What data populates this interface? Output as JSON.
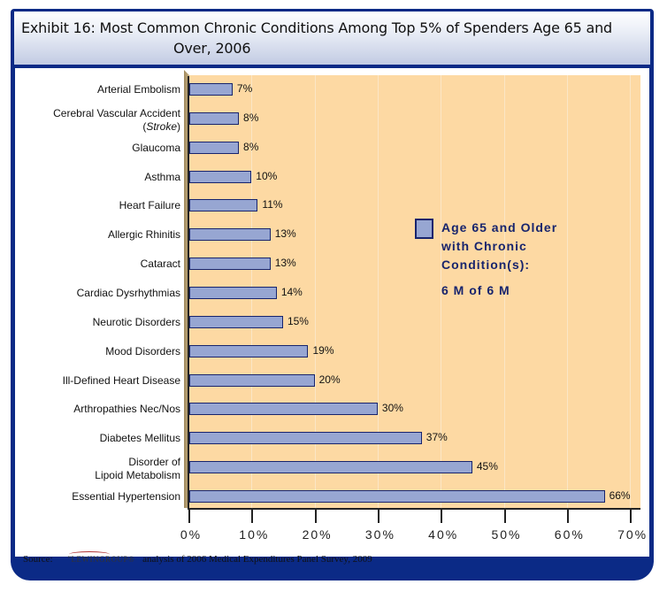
{
  "header": {
    "title_line1": "Exhibit 16: Most Common Chronic Conditions Among Top 5% of Spenders Age 65 and",
    "title_line2": "Over, 2006"
  },
  "legend": {
    "line1": "Age 65 and Older",
    "line2": "with Chronic",
    "line3": "Condition(s):",
    "line4": "6 M of 6 M",
    "swatch_color": "#97a6d2"
  },
  "source": {
    "label": "Source:",
    "logo": "\"LEWINGROUP®",
    "text": "analysis of 2006 Medical Expenditures Panel Survey, 2009"
  },
  "axis": {
    "ticks": [
      "0%",
      "10%",
      "20%",
      "30%",
      "40%",
      "50%",
      "60%",
      "70%"
    ]
  },
  "categories": [
    {
      "line1": "Arterial Embolism",
      "line2": "",
      "value": 7,
      "label": "7%"
    },
    {
      "line1": "Cerebral Vascular Accident",
      "line2": "(Stroke)",
      "value": 8,
      "label": "8%"
    },
    {
      "line1": "Glaucoma",
      "line2": "",
      "value": 8,
      "label": "8%"
    },
    {
      "line1": "Asthma",
      "line2": "",
      "value": 10,
      "label": "10%"
    },
    {
      "line1": "Heart Failure",
      "line2": "",
      "value": 11,
      "label": "11%"
    },
    {
      "line1": "Allergic Rhinitis",
      "line2": "",
      "value": 13,
      "label": "13%"
    },
    {
      "line1": "Cataract",
      "line2": "",
      "value": 13,
      "label": "13%"
    },
    {
      "line1": "Cardiac Dysrhythmias",
      "line2": "",
      "value": 14,
      "label": "14%"
    },
    {
      "line1": "Neurotic Disorders",
      "line2": "",
      "value": 15,
      "label": "15%"
    },
    {
      "line1": "Mood Disorders",
      "line2": "",
      "value": 19,
      "label": "19%"
    },
    {
      "line1": "Ill-Defined Heart Disease",
      "line2": "",
      "value": 20,
      "label": "20%"
    },
    {
      "line1": "Arthropathies Nec/Nos",
      "line2": "",
      "value": 30,
      "label": "30%"
    },
    {
      "line1": "Diabetes Mellitus",
      "line2": "",
      "value": 37,
      "label": "37%"
    },
    {
      "line1": "Disorder of",
      "line2": "Lipoid Metabolism",
      "value": 45,
      "label": "45%"
    },
    {
      "line1": "Essential Hypertension",
      "line2": "",
      "value": 66,
      "label": "66%"
    }
  ],
  "chart_data": {
    "type": "bar",
    "orientation": "horizontal",
    "title": "Exhibit 16: Most Common Chronic Conditions Among Top 5% of Spenders Age 65 and Over, 2006",
    "categories": [
      "Arterial Embolism",
      "Cerebral Vascular Accident (Stroke)",
      "Glaucoma",
      "Asthma",
      "Heart Failure",
      "Allergic Rhinitis",
      "Cataract",
      "Cardiac Dysrhythmias",
      "Neurotic Disorders",
      "Mood Disorders",
      "Ill-Defined Heart Disease",
      "Arthropathies Nec/Nos",
      "Diabetes Mellitus",
      "Disorder of Lipoid Metabolism",
      "Essential Hypertension"
    ],
    "series": [
      {
        "name": "Age 65 and Older with Chronic Condition(s): 6 M of 6 M",
        "values": [
          7,
          8,
          8,
          10,
          11,
          13,
          13,
          14,
          15,
          19,
          20,
          30,
          37,
          45,
          66
        ]
      }
    ],
    "xlabel": "",
    "ylabel": "",
    "xlim": [
      0,
      70
    ],
    "xticks": [
      "0%",
      "10%",
      "20%",
      "30%",
      "40%",
      "50%",
      "60%",
      "70%"
    ],
    "grid": true,
    "legend_position": "right-inside",
    "data_labels": true,
    "source": "Source: The Lewin Group analysis of 2006 Medical Expenditures Panel Survey, 2009"
  }
}
